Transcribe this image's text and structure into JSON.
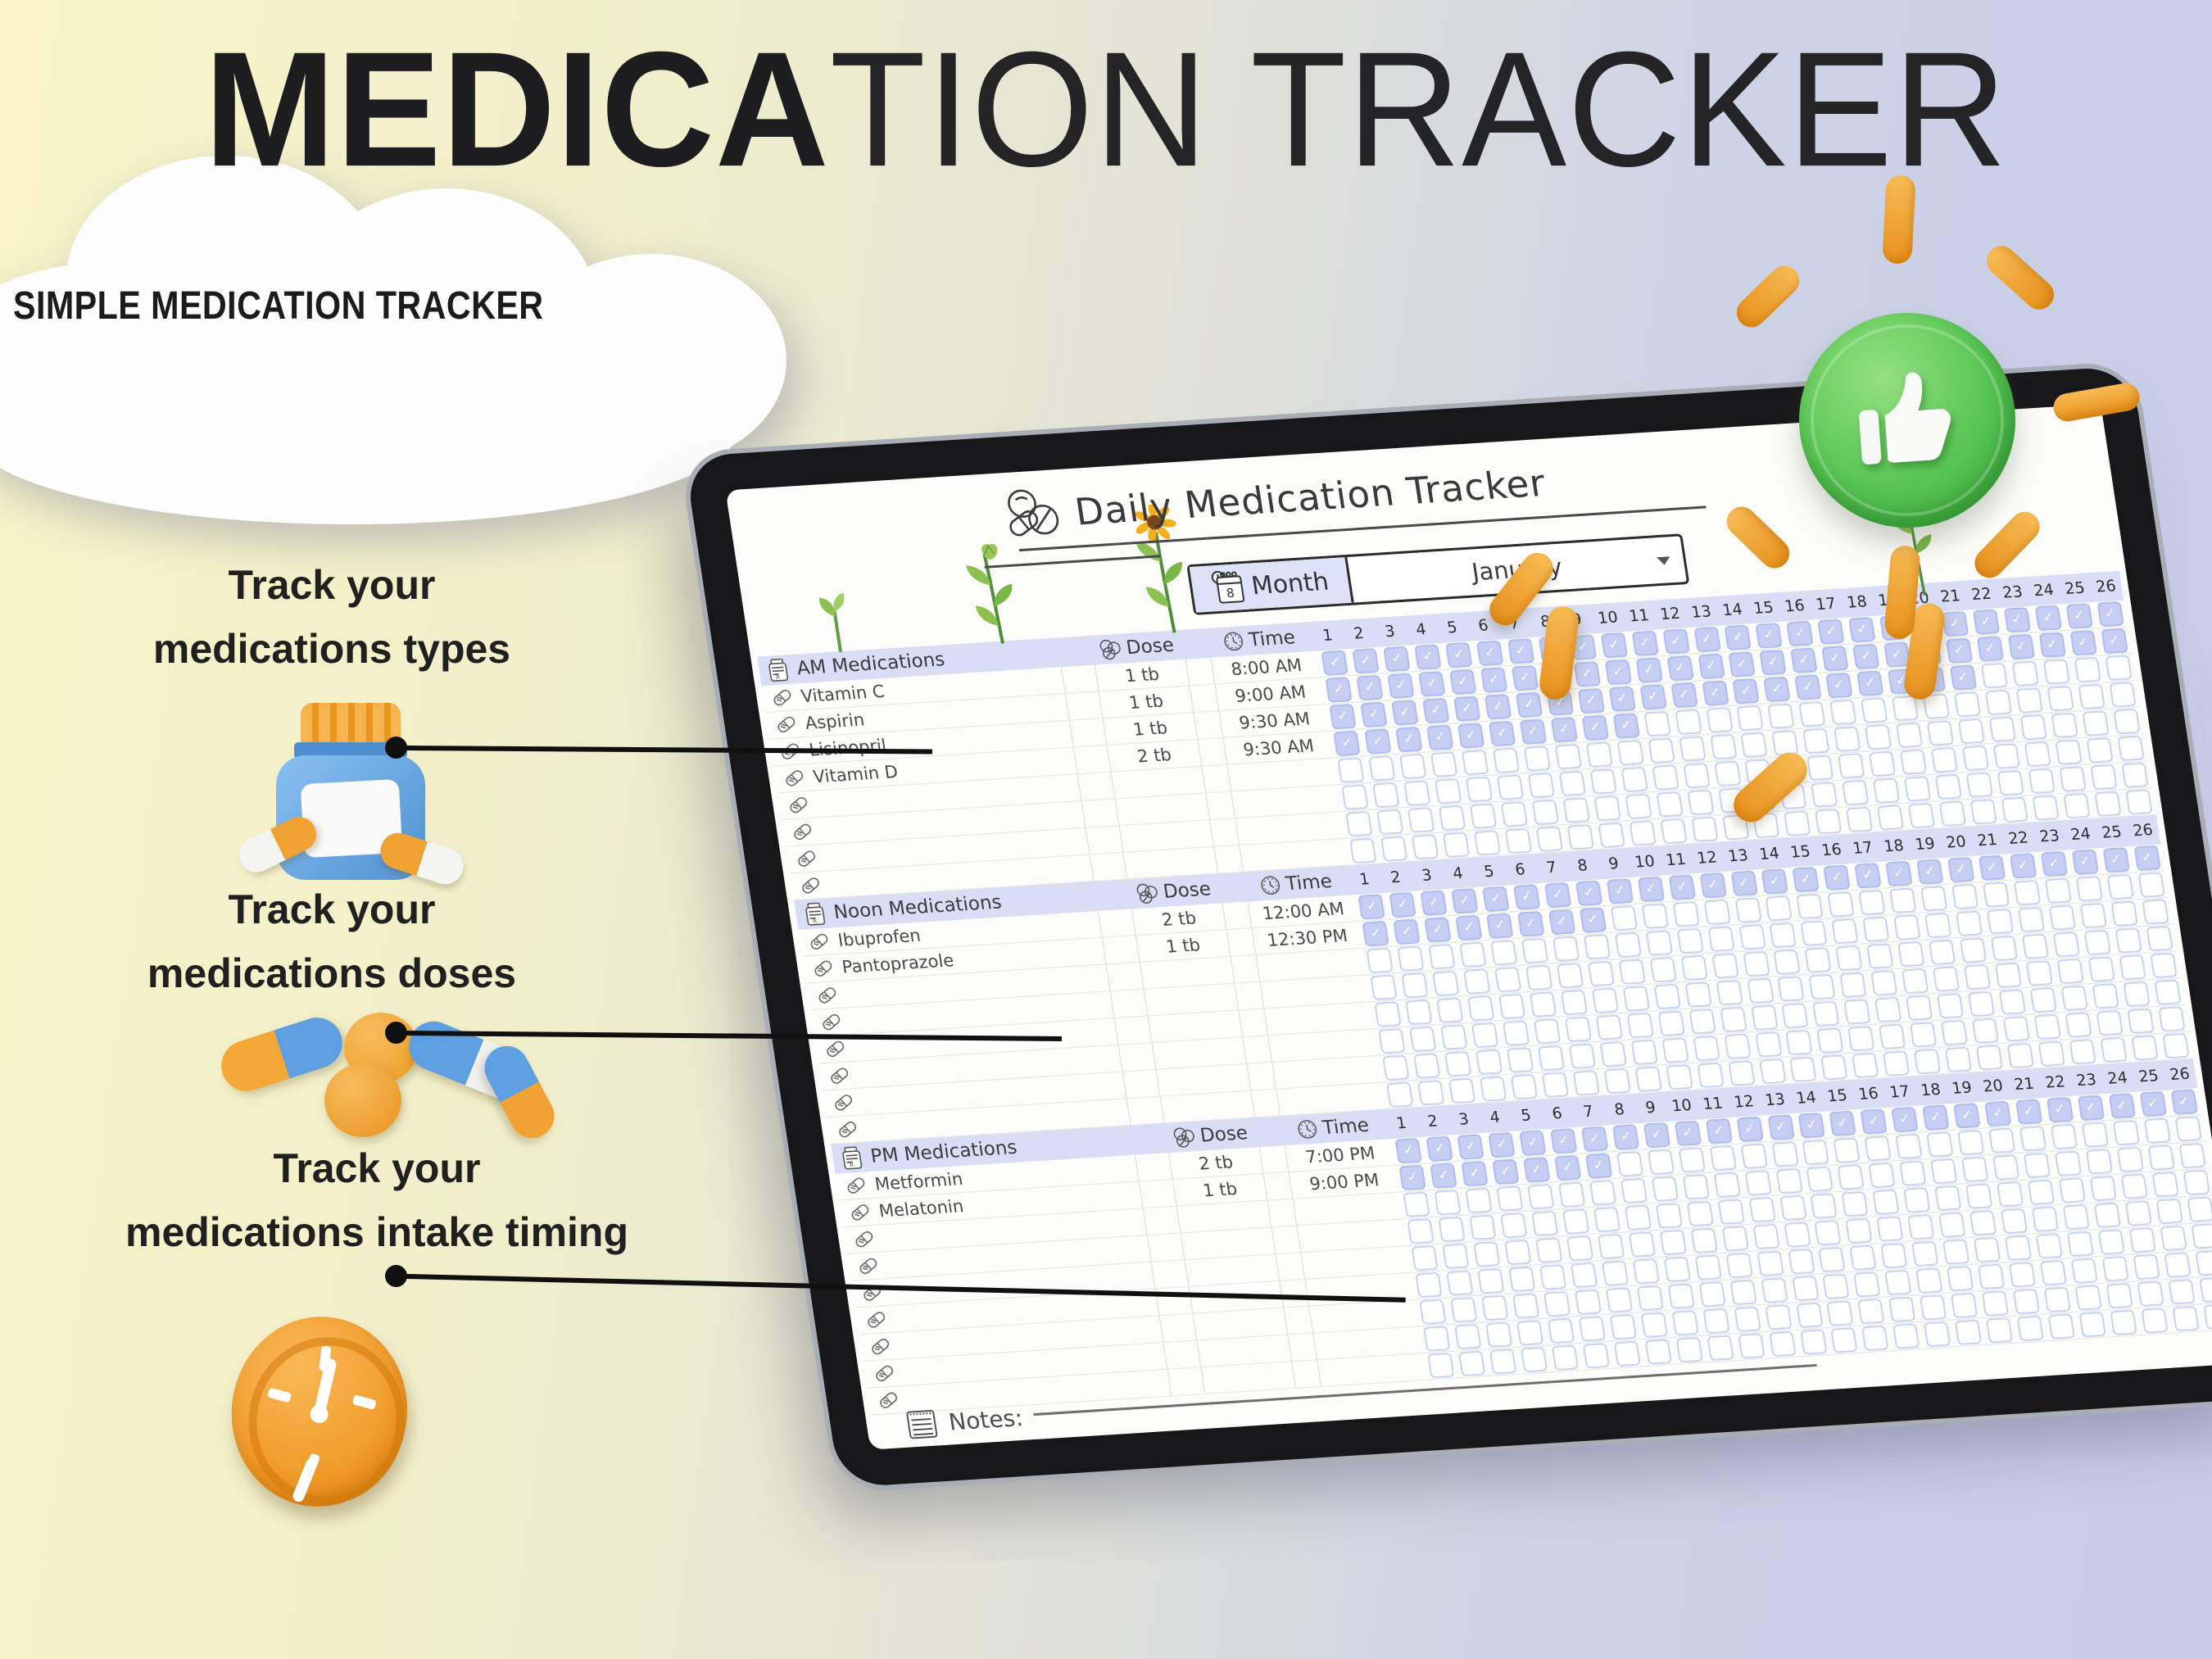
{
  "title": {
    "bold": "MEDICA",
    "light": "TION TRACKER"
  },
  "subtitle": "SIMPLE MEDICATION TRACKER",
  "features": [
    {
      "line1": "Track your",
      "line2": "medications types",
      "icon": "pill-bottle-icon"
    },
    {
      "line1": "Track your",
      "line2": "medications doses",
      "icon": "pills-icon"
    },
    {
      "line1": "Track your",
      "line2": "medications intake timing",
      "icon": "clock-icon"
    }
  ],
  "badge": {
    "icon": "thumbs-up-icon",
    "color": "#52bd4f"
  },
  "tablet": {
    "title": "Daily Medication Tracker",
    "title_icon": "pills-icon",
    "month_label": "Month",
    "month_value": "January",
    "month_icon": "calendar-icon",
    "caret_icon": "dropdown-caret-icon",
    "notes_label": "Notes:",
    "columns": {
      "dose": "Dose",
      "time": "Time"
    },
    "days": [
      1,
      2,
      3,
      4,
      5,
      6,
      7,
      8,
      9,
      10,
      11,
      12,
      13,
      14,
      15,
      16,
      17,
      18,
      19,
      20,
      21,
      22,
      23,
      24,
      25,
      26
    ],
    "sections": [
      {
        "name": "AM Medications",
        "icon": "rx-bottle-icon",
        "medications": [
          {
            "name": "Vitamin C",
            "dose": "1 tb",
            "time": "8:00 AM",
            "checked_days": 26
          },
          {
            "name": "Aspirin",
            "dose": "1 tb",
            "time": "9:00 AM",
            "checked_days": 26
          },
          {
            "name": "Lisinopril",
            "dose": "1 tb",
            "time": "9:30 AM",
            "checked_days": 21
          },
          {
            "name": "Vitamin D",
            "dose": "2 tb",
            "time": "9:30 AM",
            "checked_days": 10
          }
        ],
        "empty_rows": 4
      },
      {
        "name": "Noon Medications",
        "icon": "rx-bottle-icon",
        "medications": [
          {
            "name": "Ibuprofen",
            "dose": "2 tb",
            "time": "12:00 AM",
            "checked_days": 26
          },
          {
            "name": "Pantoprazole",
            "dose": "1 tb",
            "time": "12:30 PM",
            "checked_days": 8
          }
        ],
        "empty_rows": 6
      },
      {
        "name": "PM Medications",
        "icon": "rx-bottle-icon",
        "medications": [
          {
            "name": "Metformin",
            "dose": "2 tb",
            "time": "7:00 PM",
            "checked_days": 26
          },
          {
            "name": "Melatonin",
            "dose": "1 tb",
            "time": "9:00 PM",
            "checked_days": 7
          }
        ],
        "empty_rows": 7
      }
    ]
  },
  "icons": {
    "check": "✓",
    "caret": "▾"
  },
  "colors": {
    "band_lavender": "#d9def6",
    "checked_fill": "#c6cef3",
    "badge_green": "#52bd4f",
    "capsule_orange": "#f0a232",
    "capsule_blue": "#5e9fe2",
    "bg_yellow": "#f8f4c8",
    "bg_periwinkle": "#c6cce9"
  }
}
